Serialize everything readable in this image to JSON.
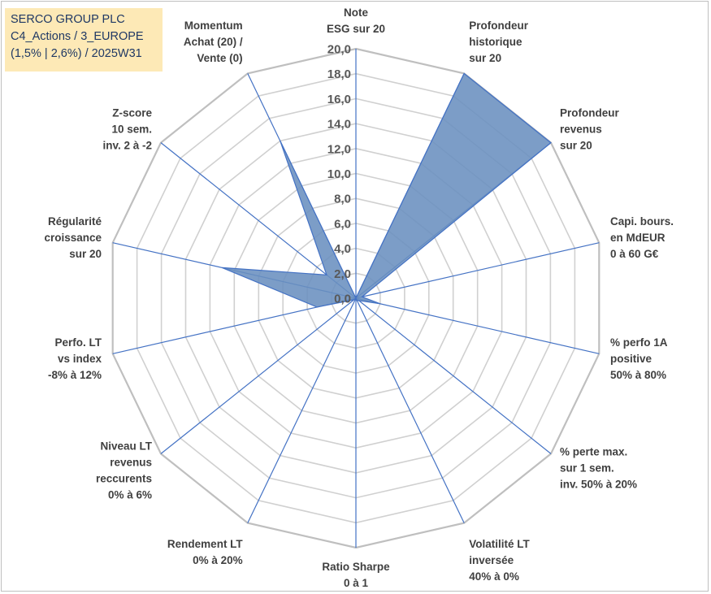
{
  "info": {
    "line1": "SERCO GROUP PLC",
    "line2": "C4_Actions / 3_EUROPE",
    "line3": "(1,5% | 2,6%) / 2025W31"
  },
  "colors": {
    "fill": "#6a8fbf",
    "stroke": "#4472c4",
    "grid": "#d0d0d0",
    "spoke": "#4472c4"
  },
  "chart_data": {
    "type": "radar",
    "rmin": 0,
    "rmax": 20,
    "ticks": [
      "0,0",
      "2,0",
      "4,0",
      "6,0",
      "8,0",
      "10,0",
      "12,0",
      "14,0",
      "16,0",
      "18,0",
      "20,0"
    ],
    "categories": [
      [
        "Note",
        "ESG sur 20"
      ],
      [
        "Profondeur",
        "historique",
        "sur 20"
      ],
      [
        "Profondeur",
        "revenus",
        "sur 20"
      ],
      [
        "Capi. bours.",
        "en MdEUR",
        "0 à 60 G€"
      ],
      [
        "% perfo 1A",
        "positive",
        "50% à 80%"
      ],
      [
        "% perte max.",
        "sur 1 sem.",
        "inv. 50% à 20%"
      ],
      [
        "Volatilité LT",
        "inversée",
        "40% à 0%"
      ],
      [
        "Ratio Sharpe",
        "0 à 1"
      ],
      [
        "Rendement LT",
        "0% à 20%"
      ],
      [
        "Niveau LT",
        "revenus",
        "reccurents",
        "0% à 6%"
      ],
      [
        "Perfo. LT",
        "vs index",
        "-8% à 12%"
      ],
      [
        "Régularité",
        "croissance",
        "sur 20"
      ],
      [
        "Z-score",
        "10 sem.",
        "inv. 2 à -2"
      ],
      [
        "Momentum",
        "Achat (20) /",
        "Vente (0)"
      ]
    ],
    "values": [
      0,
      20,
      20,
      0.5,
      2.0,
      0.3,
      0.2,
      0,
      0,
      0.2,
      3.2,
      11.0,
      3.0,
      14.0
    ],
    "grid": true,
    "legend": "none"
  }
}
